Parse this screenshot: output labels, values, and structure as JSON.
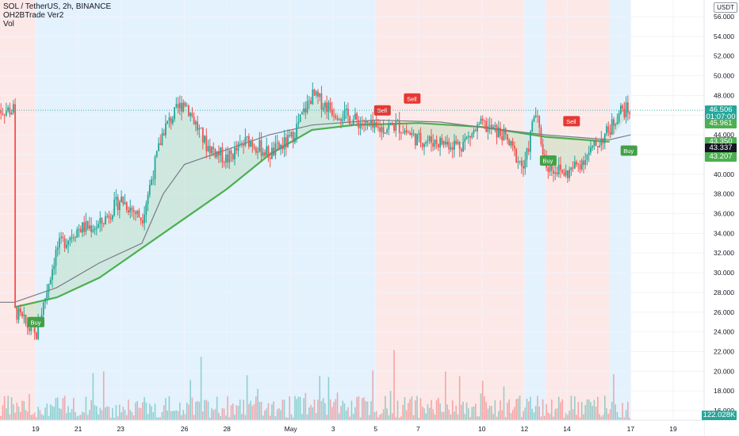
{
  "legend": {
    "symbol": "SOL / TetherUS, 2h, BINANCE",
    "indicator": "OH2BTrade Ver2",
    "volume": "Vol"
  },
  "currency_badge": "USDT",
  "price_tags": {
    "last": "46.506",
    "countdown": "01:07:00",
    "upper": "45.961",
    "mid1": "43.350",
    "mid2": "43.337",
    "mid3": "43.207",
    "volume": "122.028K"
  },
  "colors": {
    "up": "#26a69a",
    "down": "#ef5350",
    "buy_zone": "#e3f2fd",
    "sell_zone": "#fde8e8",
    "trend_line": "#4caf50",
    "trend_line_sell": "#ef5350",
    "step_line": "#787b86"
  },
  "chart_data": {
    "type": "candlestick",
    "title": "SOL / TetherUS, 2h, BINANCE",
    "y_ticks": [
      "56.000",
      "54.000",
      "52.000",
      "50.000",
      "48.000",
      "46.000",
      "44.000",
      "42.000",
      "40.000",
      "38.000",
      "36.000",
      "34.000",
      "32.000",
      "30.000",
      "28.000",
      "26.000",
      "24.000",
      "22.000",
      "20.000",
      "18.000",
      "16.000"
    ],
    "x_ticks": [
      "19",
      "21",
      "23",
      "26",
      "28",
      "May",
      "3",
      "5",
      "7",
      "10",
      "12",
      "14",
      "17",
      "19"
    ],
    "ylim": [
      15.5,
      57.5
    ],
    "grid": true,
    "zones": [
      {
        "type": "sell",
        "from": "Apr 18",
        "to": "Apr 19"
      },
      {
        "type": "buy",
        "from": "Apr 19",
        "to": "May 5"
      },
      {
        "type": "sell",
        "from": "May 5",
        "to": "May 12"
      },
      {
        "type": "buy",
        "from": "May 12",
        "to": "May 13"
      },
      {
        "type": "sell",
        "from": "May 13",
        "to": "May 16"
      },
      {
        "type": "buy",
        "from": "May 16",
        "to": "May 17"
      }
    ],
    "signals": [
      {
        "label": "Buy",
        "price": 26.0
      },
      {
        "label": "Sell",
        "price": 45.4
      },
      {
        "label": "Sell",
        "price": 46.6
      },
      {
        "label": "Sell",
        "price": 44.3
      },
      {
        "label": "Buy",
        "price": 42.4
      },
      {
        "label": "Buy",
        "price": 43.4
      }
    ],
    "price_path": [
      {
        "x": "Apr 18",
        "close": 26.2
      },
      {
        "x": "Apr 19",
        "close": 23.5
      },
      {
        "x": "Apr 19",
        "close": 28.0
      },
      {
        "x": "Apr 20",
        "close": 32.5
      },
      {
        "x": "Apr 21",
        "close": 34.5
      },
      {
        "x": "Apr 22",
        "close": 34.8
      },
      {
        "x": "Apr 23",
        "close": 37.5
      },
      {
        "x": "Apr 24",
        "close": 35.5
      },
      {
        "x": "Apr 25",
        "close": 44.5
      },
      {
        "x": "Apr 26",
        "close": 47.5
      },
      {
        "x": "Apr 27",
        "close": 43.0
      },
      {
        "x": "Apr 28",
        "close": 41.5
      },
      {
        "x": "Apr 29",
        "close": 43.5
      },
      {
        "x": "Apr 30",
        "close": 42.0
      },
      {
        "x": "May 1",
        "close": 43.5
      },
      {
        "x": "May 2",
        "close": 48.0
      },
      {
        "x": "May 3",
        "close": 46.5
      },
      {
        "x": "May 5",
        "close": 44.5
      },
      {
        "x": "May 6",
        "close": 45.0
      },
      {
        "x": "May 7",
        "close": 43.5
      },
      {
        "x": "May 9",
        "close": 43.0
      },
      {
        "x": "May 10",
        "close": 45.0
      },
      {
        "x": "May 11",
        "close": 44.0
      },
      {
        "x": "May 12",
        "close": 40.5
      },
      {
        "x": "May 12",
        "close": 46.5
      },
      {
        "x": "May 13",
        "close": 41.0
      },
      {
        "x": "May 14",
        "close": 40.0
      },
      {
        "x": "May 15",
        "close": 42.0
      },
      {
        "x": "May 16",
        "close": 44.5
      },
      {
        "x": "May 16",
        "close": 46.5
      }
    ],
    "trend_line": [
      {
        "x": "Apr 18",
        "y": 26.5
      },
      {
        "x": "Apr 20",
        "y": 27.5
      },
      {
        "x": "Apr 22",
        "y": 29.5
      },
      {
        "x": "Apr 24",
        "y": 32.5
      },
      {
        "x": "Apr 26",
        "y": 35.5
      },
      {
        "x": "Apr 28",
        "y": 38.5
      },
      {
        "x": "Apr 30",
        "y": 42.0
      },
      {
        "x": "May 2",
        "y": 44.5
      },
      {
        "x": "May 4",
        "y": 45.0
      },
      {
        "x": "May 7",
        "y": 45.2
      },
      {
        "x": "May 10",
        "y": 44.8
      },
      {
        "x": "May 13",
        "y": 43.8
      },
      {
        "x": "May 16",
        "y": 43.3
      }
    ]
  }
}
